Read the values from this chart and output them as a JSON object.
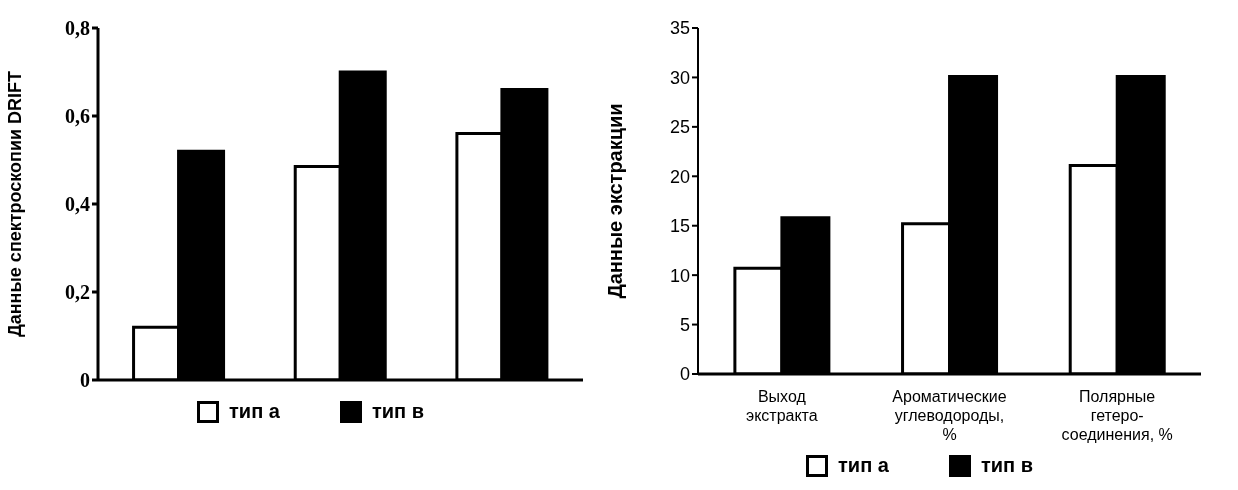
{
  "chart_data": [
    {
      "type": "bar",
      "ylabel": "Данные спектроскопии DRIFT",
      "categories": [
        null,
        null,
        null
      ],
      "series": [
        {
          "name": "тип а",
          "color": "#ffffff",
          "values": [
            0.12,
            0.485,
            0.56
          ]
        },
        {
          "name": "тип в",
          "color": "#000000",
          "values": [
            0.52,
            0.7,
            0.66
          ]
        }
      ],
      "ylim": [
        0,
        0.8
      ],
      "yticks": [
        0,
        {
          "value": 0.2,
          "label": "0,2"
        },
        {
          "value": 0.4,
          "label": "0,4"
        },
        {
          "value": 0.6,
          "label": "0,6"
        },
        {
          "value": 0.8,
          "label": "0,8"
        }
      ],
      "tick_labels": "y",
      "grid": false,
      "legend": "bottom"
    },
    {
      "type": "bar",
      "ylabel": "Данные экстракции",
      "categories": [
        "Выход экстракта",
        "Ароматические углеводороды, %",
        "Полярные гетеро-соединения, %"
      ],
      "series": [
        {
          "name": "тип а",
          "color": "#ffffff",
          "values": [
            10.7,
            15.2,
            21.1
          ]
        },
        {
          "name": "тип в",
          "color": "#000000",
          "values": [
            15.8,
            30.1,
            30.1
          ]
        }
      ],
      "ylim": [
        0,
        35
      ],
      "yticks": [
        0,
        5,
        10,
        15,
        20,
        25,
        30,
        35
      ],
      "grid": false,
      "legend": "bottom"
    }
  ]
}
